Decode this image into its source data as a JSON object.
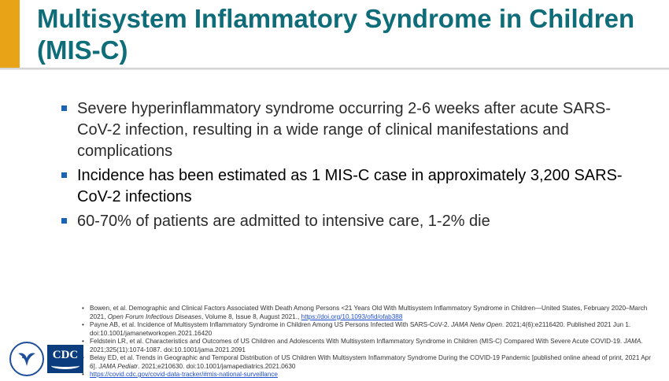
{
  "slide": {
    "title": "Multisystem Inflammatory Syndrome in Children (MIS-C)",
    "accent_color": "#e8a317",
    "title_color": "#0f6d7a",
    "bullet_color": "#1a62b3"
  },
  "bullets": [
    {
      "text": "Severe hyperinflammatory syndrome occurring 2-6 weeks after acute SARS-CoV-2 infection, resulting in a wide range of clinical manifestations and complications"
    },
    {
      "text": "Incidence has been estimated as 1 MIS-C case in approximately 3,200 SARS-CoV-2 infections"
    },
    {
      "text": "60-70% of patients are admitted to intensive care, 1-2% die"
    }
  ],
  "references": {
    "bullet": "•",
    "r1_text": "Bowen, et al. Demographic and Clinical Factors Associated With Death Among Persons <21 Years Old With Multisystem Inflammatory Syndrome in Children—United States, February 2020–March 2021, ",
    "r1_journal": "Open Forum Infectious Diseases",
    "r1_text2": ", Volume 8, Issue 8, August 2021., ",
    "r1_link": "https://doi.org/10.1093/ofid/ofab388",
    "r2_text": "Payne AB, et al. Incidence of Multisystem Inflammatory Syndrome in Children Among US Persons Infected With SARS-CoV-2. ",
    "r2_journal": "JAMA Netw Open",
    "r2_text2": ". 2021;4(6):e2116420. Published 2021 Jun 1. doi:10.1001/jamanetworkopen.2021.16420",
    "r3_text": "Feldstein LR, et al. Characteristics and Outcomes of US Children and Adolescents With Multisystem Inflammatory Syndrome in Children (MIS-C) Compared With Severe Acute COVID-19. ",
    "r3_journal": "JAMA",
    "r3_text2": ". 2021;325(11):1074-1087. doi:10.1001/jama.2021.2091",
    "r4_text": "Belay ED, et al. Trends in Geographic and Temporal Distribution of US Children With Multisystem Inflammatory Syndrome During the COVID-19 Pandemic [published online ahead of print, 2021 Apr 6]. ",
    "r4_journal": "JAMA Pediatr",
    "r4_text2": ". 2021;e210630. doi:10.1001/jamapediatrics.2021.0630",
    "r5_link": "https://covid.cdc.gov/covid-data-tracker/#mis-national-surveillance"
  },
  "logo": {
    "cdc_text": "CDC",
    "hhs_icon": "hhs-eagle-seal-icon"
  }
}
